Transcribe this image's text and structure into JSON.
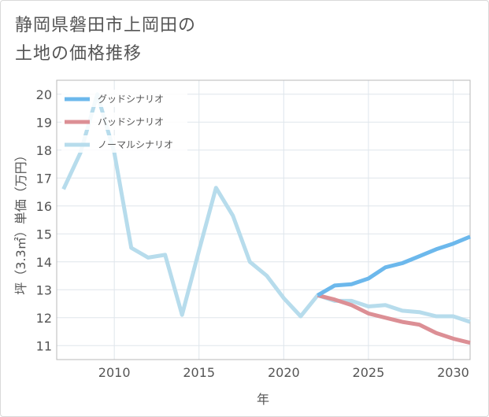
{
  "title_line1": "静岡県磐田市上岡田の",
  "title_line2": "土地の価格推移",
  "chart_data": {
    "type": "line",
    "xlabel": "年",
    "ylabel": "坪（3.3㎡）単価（万円）",
    "xlim": [
      2006.6,
      2031
    ],
    "ylim": [
      10.5,
      20.5
    ],
    "x_ticks": [
      2010,
      2015,
      2020,
      2025,
      2030
    ],
    "y_ticks": [
      11,
      12,
      13,
      14,
      15,
      16,
      17,
      18,
      19,
      20
    ],
    "grid": true,
    "legend_position": "top-left",
    "series": [
      {
        "name": "グッドシナリオ",
        "color": "#6cb8ec",
        "x": [
          2022,
          2023,
          2024,
          2025,
          2026,
          2027,
          2028,
          2029,
          2030,
          2031
        ],
        "y": [
          12.8,
          13.15,
          13.2,
          13.4,
          13.8,
          13.95,
          14.2,
          14.45,
          14.65,
          14.9
        ]
      },
      {
        "name": "バッドシナリオ",
        "color": "#dc8f95",
        "x": [
          2022,
          2023,
          2024,
          2025,
          2026,
          2027,
          2028,
          2029,
          2030,
          2031
        ],
        "y": [
          12.8,
          12.65,
          12.45,
          12.15,
          12.0,
          11.85,
          11.75,
          11.45,
          11.25,
          11.1
        ]
      },
      {
        "name": "ノーマルシナリオ",
        "color": "#b7dcec",
        "x": [
          2007,
          2008,
          2009,
          2010,
          2011,
          2012,
          2013,
          2014,
          2015,
          2016,
          2017,
          2018,
          2019,
          2020,
          2021,
          2022,
          2023,
          2024,
          2025,
          2026,
          2027,
          2028,
          2029,
          2030,
          2031
        ],
        "y": [
          16.6,
          17.9,
          20.0,
          17.9,
          14.5,
          14.15,
          14.25,
          12.1,
          14.4,
          16.65,
          15.65,
          14.0,
          13.5,
          12.7,
          12.05,
          12.8,
          12.6,
          12.6,
          12.4,
          12.45,
          12.25,
          12.2,
          12.05,
          12.05,
          11.85
        ]
      }
    ]
  }
}
